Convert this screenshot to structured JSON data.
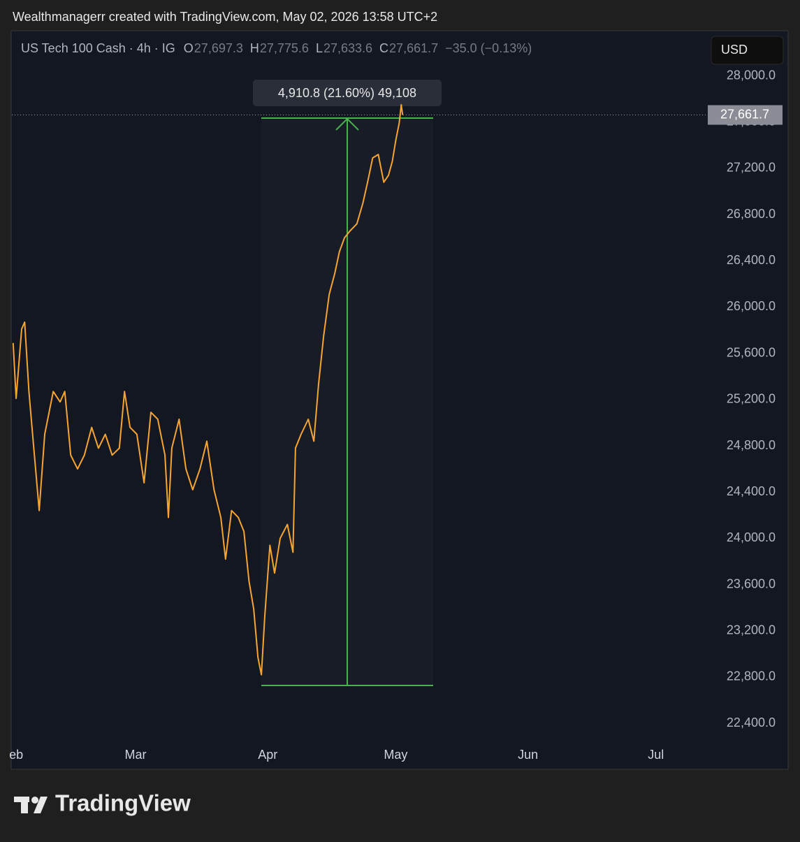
{
  "caption": "Wealthmanagerr created with TradingView.com, May 02, 2026 13:58 UTC+2",
  "logo": "TradingView",
  "chart_data": {
    "type": "line",
    "title": "US Tech 100 Cash · 4h · IG",
    "ohlc": {
      "open": {
        "label": "O",
        "value": "27,697.3"
      },
      "high": {
        "label": "H",
        "value": "27,775.6"
      },
      "low": {
        "label": "L",
        "value": "27,633.6"
      },
      "close": {
        "label": "C",
        "value": "27,661.7"
      },
      "change": "−35.0 (−0.13%)"
    },
    "currency": "USD",
    "measure_label": "4,910.8 (21.60%) 49,108",
    "last_price": {
      "value": 27661.7,
      "label": "27,661.7"
    },
    "xlim": [
      31,
      194
    ],
    "xticks": [
      {
        "value": 32,
        "label": "eb"
      },
      {
        "value": 60,
        "label": "Mar"
      },
      {
        "value": 91,
        "label": "Apr"
      },
      {
        "value": 121,
        "label": "May"
      },
      {
        "value": 152,
        "label": "Jun"
      },
      {
        "value": 182,
        "label": "Jul"
      }
    ],
    "ylim": [
      22250,
      28100
    ],
    "yticks": [
      {
        "value": 22400,
        "label": "22,400.0"
      },
      {
        "value": 22800,
        "label": "22,800.0"
      },
      {
        "value": 23200,
        "label": "23,200.0"
      },
      {
        "value": 23600,
        "label": "23,600.0"
      },
      {
        "value": 24000,
        "label": "24,000.0"
      },
      {
        "value": 24400,
        "label": "24,400.0"
      },
      {
        "value": 24800,
        "label": "24,800.0"
      },
      {
        "value": 25200,
        "label": "25,200.0"
      },
      {
        "value": 25600,
        "label": "25,600.0"
      },
      {
        "value": 26000,
        "label": "26,000.0"
      },
      {
        "value": 26400,
        "label": "26,400.0"
      },
      {
        "value": 26800,
        "label": "26,800.0"
      },
      {
        "value": 27200,
        "label": "27,200.0"
      },
      {
        "value": 27600,
        "label": "27,600.0"
      },
      {
        "value": 28000,
        "label": "28,000.0"
      }
    ],
    "x": [
      31.3,
      32,
      33.3,
      34,
      35,
      36,
      37.4,
      38.7,
      40.7,
      42.3,
      43.4,
      44.8,
      46.4,
      48,
      49.7,
      51.3,
      52.9,
      54.5,
      56.2,
      57.4,
      58.7,
      60.3,
      62,
      63.6,
      65.2,
      66.9,
      67.7,
      68.5,
      70.2,
      71.8,
      73.4,
      75.1,
      76.7,
      78.4,
      80,
      81.1,
      82.5,
      84.1,
      85.4,
      86.6,
      87.7,
      88.7,
      89.5,
      90.3,
      91.5,
      92.6,
      93.9,
      95.6,
      96.9,
      97.5,
      98.8,
      100.5,
      101.8,
      102.9,
      104.1,
      105.4,
      106.7,
      107.8,
      109,
      110.3,
      111.9,
      113.3,
      114.4,
      115.6,
      116.9,
      118.2,
      119.3,
      120.2,
      121,
      121.8,
      122.3,
      122.6
    ],
    "series": [
      {
        "color": "#f7a531",
        "values": [
          25690,
          25210,
          25810,
          25870,
          25270,
          24840,
          24240,
          24900,
          25270,
          25180,
          25270,
          24720,
          24600,
          24720,
          24960,
          24780,
          24900,
          24720,
          24780,
          25270,
          24960,
          24900,
          24480,
          25090,
          25030,
          24720,
          24180,
          24780,
          25030,
          24600,
          24420,
          24600,
          24840,
          24420,
          24180,
          23820,
          24240,
          24180,
          24060,
          23630,
          23390,
          22970,
          22820,
          23330,
          23940,
          23700,
          24000,
          24120,
          23880,
          24780,
          24900,
          25030,
          24840,
          25330,
          25750,
          26110,
          26290,
          26480,
          26600,
          26660,
          26720,
          26900,
          27080,
          27290,
          27320,
          27080,
          27140,
          27260,
          27440,
          27590,
          27750,
          27661.7
        ]
      }
    ]
  }
}
